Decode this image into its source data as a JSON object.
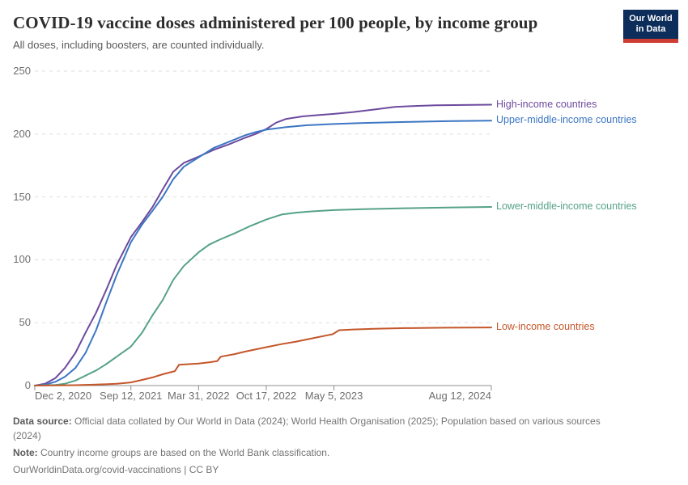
{
  "header": {
    "logo": {
      "line1": "Our World",
      "line2": "in Data",
      "bg_color": "#0d2e5a",
      "accent_color": "#cd3d34"
    }
  },
  "chart_data": {
    "type": "line",
    "title": "COVID-19 vaccine doses administered per 100 people, by income group",
    "subtitle": "All doses, including boosters, are counted individually.",
    "ylabel": "",
    "xlabel": "",
    "ylim": [
      0,
      250
    ],
    "yticks": [
      0,
      50,
      100,
      150,
      200,
      250
    ],
    "grid": true,
    "legend_position": "right-of-line-ends",
    "x_domain": [
      "2020-12-02",
      "2024-08-12"
    ],
    "xticks": [
      {
        "date": "2020-12-02",
        "label": "Dec 2, 2020"
      },
      {
        "date": "2021-09-12",
        "label": "Sep 12, 2021"
      },
      {
        "date": "2022-03-31",
        "label": "Mar 31, 2022"
      },
      {
        "date": "2022-10-17",
        "label": "Oct 17, 2022"
      },
      {
        "date": "2023-05-05",
        "label": "May 5, 2023"
      },
      {
        "date": "2024-08-12",
        "label": "Aug 12, 2024"
      }
    ],
    "series": [
      {
        "name": "High-income countries",
        "color": "#6d4a9e",
        "points": [
          [
            "2020-12-02",
            0
          ],
          [
            "2021-01-01",
            1.5
          ],
          [
            "2021-02-01",
            6
          ],
          [
            "2021-03-01",
            14
          ],
          [
            "2021-04-01",
            26
          ],
          [
            "2021-05-01",
            42
          ],
          [
            "2021-06-01",
            58
          ],
          [
            "2021-07-01",
            76
          ],
          [
            "2021-08-01",
            96
          ],
          [
            "2021-09-12",
            118
          ],
          [
            "2021-10-15",
            130
          ],
          [
            "2021-11-15",
            142
          ],
          [
            "2021-12-15",
            156
          ],
          [
            "2022-01-15",
            170
          ],
          [
            "2022-02-15",
            177
          ],
          [
            "2022-03-31",
            182
          ],
          [
            "2022-05-15",
            187.5
          ],
          [
            "2022-07-01",
            192
          ],
          [
            "2022-08-15",
            197
          ],
          [
            "2022-09-15",
            200
          ],
          [
            "2022-10-17",
            204
          ],
          [
            "2022-11-15",
            209
          ],
          [
            "2022-12-15",
            212
          ],
          [
            "2023-02-01",
            214
          ],
          [
            "2023-03-15",
            215
          ],
          [
            "2023-05-05",
            216
          ],
          [
            "2023-07-01",
            217.5
          ],
          [
            "2023-09-01",
            219.5
          ],
          [
            "2023-11-01",
            221.5
          ],
          [
            "2023-12-30",
            222.3
          ],
          [
            "2024-03-01",
            222.8
          ],
          [
            "2024-08-12",
            223.3
          ]
        ]
      },
      {
        "name": "Upper-middle-income countries",
        "color": "#3c76c3",
        "points": [
          [
            "2020-12-02",
            0
          ],
          [
            "2021-01-01",
            0.7
          ],
          [
            "2021-02-01",
            3
          ],
          [
            "2021-03-01",
            7
          ],
          [
            "2021-04-01",
            14
          ],
          [
            "2021-05-01",
            26
          ],
          [
            "2021-06-01",
            44
          ],
          [
            "2021-07-01",
            66
          ],
          [
            "2021-08-01",
            88
          ],
          [
            "2021-09-12",
            114
          ],
          [
            "2021-10-15",
            128
          ],
          [
            "2021-11-15",
            139
          ],
          [
            "2021-12-15",
            150
          ],
          [
            "2022-01-15",
            164
          ],
          [
            "2022-02-15",
            174
          ],
          [
            "2022-03-31",
            181.5
          ],
          [
            "2022-05-15",
            189
          ],
          [
            "2022-07-01",
            194
          ],
          [
            "2022-08-15",
            199
          ],
          [
            "2022-09-15",
            201.5
          ],
          [
            "2022-10-17",
            203.5
          ],
          [
            "2022-12-15",
            205.5
          ],
          [
            "2023-02-15",
            207
          ],
          [
            "2023-05-05",
            208
          ],
          [
            "2023-08-01",
            208.8
          ],
          [
            "2023-12-01",
            209.6
          ],
          [
            "2024-04-01",
            210.2
          ],
          [
            "2024-08-12",
            210.6
          ]
        ]
      },
      {
        "name": "Lower-middle-income countries",
        "color": "#55a286",
        "points": [
          [
            "2020-12-02",
            0
          ],
          [
            "2021-02-01",
            0.5
          ],
          [
            "2021-03-01",
            1.5
          ],
          [
            "2021-04-01",
            4
          ],
          [
            "2021-05-01",
            8
          ],
          [
            "2021-06-01",
            12
          ],
          [
            "2021-07-01",
            17
          ],
          [
            "2021-08-01",
            23
          ],
          [
            "2021-09-12",
            31
          ],
          [
            "2021-10-15",
            42
          ],
          [
            "2021-11-15",
            56
          ],
          [
            "2021-12-15",
            68
          ],
          [
            "2022-01-15",
            84
          ],
          [
            "2022-02-15",
            95
          ],
          [
            "2022-03-31",
            106
          ],
          [
            "2022-05-01",
            112
          ],
          [
            "2022-06-01",
            116
          ],
          [
            "2022-07-15",
            121
          ],
          [
            "2022-09-01",
            127
          ],
          [
            "2022-10-17",
            132
          ],
          [
            "2022-12-01",
            136
          ],
          [
            "2023-01-15",
            137.5
          ],
          [
            "2023-03-01",
            138.5
          ],
          [
            "2023-05-05",
            139.5
          ],
          [
            "2023-08-01",
            140.3
          ],
          [
            "2023-12-01",
            141
          ],
          [
            "2024-04-01",
            141.5
          ],
          [
            "2024-08-12",
            142
          ]
        ]
      },
      {
        "name": "Low-income countries",
        "color": "#c4562a",
        "points": [
          [
            "2020-12-02",
            0
          ],
          [
            "2021-04-01",
            0.3
          ],
          [
            "2021-06-01",
            0.8
          ],
          [
            "2021-08-01",
            1.5
          ],
          [
            "2021-09-12",
            2.5
          ],
          [
            "2021-10-15",
            4.5
          ],
          [
            "2021-11-15",
            6.5
          ],
          [
            "2021-12-15",
            9
          ],
          [
            "2022-01-20",
            11.5
          ],
          [
            "2022-02-01",
            16.5
          ],
          [
            "2022-03-01",
            17
          ],
          [
            "2022-03-31",
            17.5
          ],
          [
            "2022-05-01",
            18.5
          ],
          [
            "2022-05-25",
            19.5
          ],
          [
            "2022-06-05",
            23
          ],
          [
            "2022-07-15",
            25
          ],
          [
            "2022-08-15",
            27
          ],
          [
            "2022-10-17",
            30.5
          ],
          [
            "2022-12-01",
            33
          ],
          [
            "2023-01-15",
            35
          ],
          [
            "2023-03-01",
            37.5
          ],
          [
            "2023-04-15",
            40
          ],
          [
            "2023-05-01",
            40.8
          ],
          [
            "2023-05-20",
            44
          ],
          [
            "2023-07-01",
            44.6
          ],
          [
            "2023-09-01",
            45.2
          ],
          [
            "2023-12-01",
            45.7
          ],
          [
            "2024-04-01",
            46
          ],
          [
            "2024-08-12",
            46.2
          ]
        ]
      }
    ],
    "style": {
      "gridline_color": "#dddddd",
      "axis_color": "#8f8f8f",
      "tick_label_color": "#6e6e6e"
    }
  },
  "footer": {
    "data_source_label": "Data source:",
    "data_source_line1": "Official data collated by Our World in Data (2024); World Health Organisation (2025); Population based on various sources",
    "data_source_line2": "(2024)",
    "note_label": "Note:",
    "note_text": "Country income groups are based on the World Bank classification.",
    "url_text": "OurWorldinData.org/covid-vaccinations",
    "license_text": "CC BY",
    "separator": "|"
  }
}
